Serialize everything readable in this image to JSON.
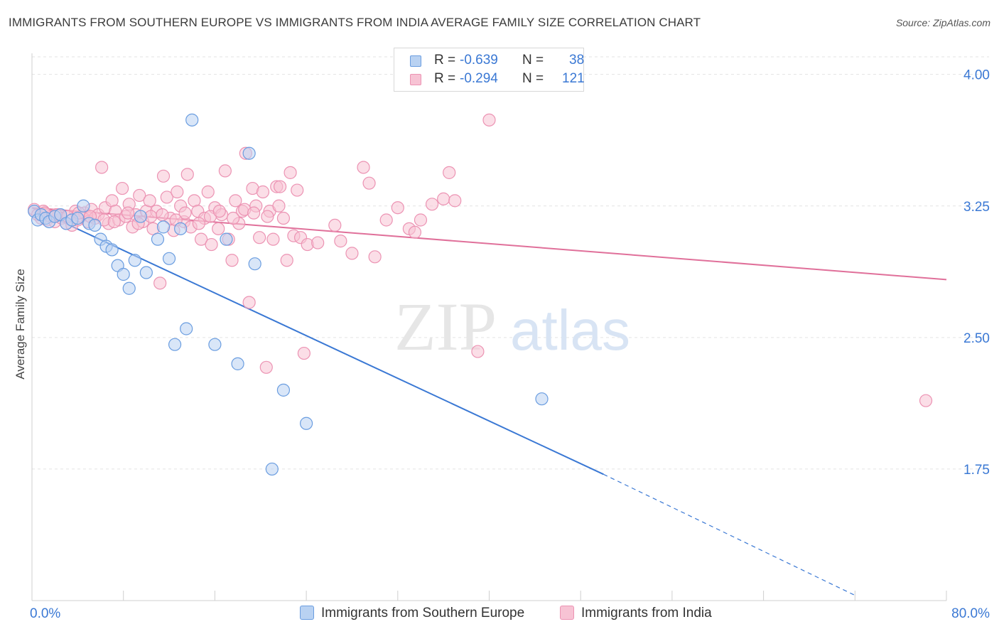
{
  "title": "IMMIGRANTS FROM SOUTHERN EUROPE VS IMMIGRANTS FROM INDIA AVERAGE FAMILY SIZE CORRELATION CHART",
  "source": "Source: ZipAtlas.com",
  "watermark": {
    "zip": "ZIP",
    "atlas": "atlas"
  },
  "colors": {
    "blue": "#3a78d4",
    "blue_fill": "#b9d2f2",
    "blue_stroke": "#6a9de0",
    "pink": "#e0709a",
    "pink_fill": "#f7c3d4",
    "pink_stroke": "#ec93b3",
    "grid": "#e3e3e3",
    "tick_label": "#3a78d4"
  },
  "legend_top": {
    "rows": [
      {
        "r_label": "R =",
        "r_value": "-0.639",
        "n_label": "N =",
        "n_value": "38",
        "color": "blue"
      },
      {
        "r_label": "R =",
        "r_value": "-0.294",
        "n_label": "N =",
        "n_value": "121",
        "color": "pink"
      }
    ]
  },
  "chart_data": {
    "type": "scatter",
    "title": "IMMIGRANTS FROM SOUTHERN EUROPE VS IMMIGRANTS FROM INDIA AVERAGE FAMILY SIZE CORRELATION CHART",
    "xlabel": "",
    "ylabel": "Average Family Size",
    "xlim": [
      0,
      80
    ],
    "ylim": [
      1.0,
      4.1
    ],
    "x_tick_labels": [
      "0.0%",
      "80.0%"
    ],
    "y_ticks": [
      1.75,
      2.5,
      3.25,
      4.0
    ],
    "y_tick_labels": [
      "1.75",
      "2.50",
      "3.25",
      "4.00"
    ],
    "grid": true,
    "legend_position": "top-center",
    "series": [
      {
        "name": "Immigrants from Southern Europe",
        "color": "blue",
        "R": -0.639,
        "N": 38,
        "trend": {
          "x0": 0,
          "y0": 3.24,
          "x1": 50,
          "y1": 1.72,
          "dashed_to_x": 72,
          "dashed_to_y": 1.03
        },
        "points": [
          [
            0.2,
            3.22
          ],
          [
            0.5,
            3.17
          ],
          [
            0.8,
            3.2
          ],
          [
            1.2,
            3.18
          ],
          [
            1.5,
            3.16
          ],
          [
            2.0,
            3.19
          ],
          [
            2.5,
            3.2
          ],
          [
            3.0,
            3.15
          ],
          [
            3.5,
            3.17
          ],
          [
            4.0,
            3.18
          ],
          [
            4.5,
            3.25
          ],
          [
            5.0,
            3.15
          ],
          [
            5.5,
            3.14
          ],
          [
            6.0,
            3.06
          ],
          [
            6.5,
            3.02
          ],
          [
            7.0,
            3.0
          ],
          [
            7.5,
            2.91
          ],
          [
            8.0,
            2.86
          ],
          [
            8.5,
            2.78
          ],
          [
            9.0,
            2.94
          ],
          [
            9.5,
            3.19
          ],
          [
            10.0,
            2.87
          ],
          [
            11.0,
            3.06
          ],
          [
            12.0,
            2.95
          ],
          [
            13.0,
            3.12
          ],
          [
            11.5,
            3.13
          ],
          [
            12.5,
            2.46
          ],
          [
            13.5,
            2.55
          ],
          [
            14.0,
            3.74
          ],
          [
            16.0,
            2.46
          ],
          [
            17.0,
            3.06
          ],
          [
            18.0,
            2.35
          ],
          [
            19.0,
            3.55
          ],
          [
            19.5,
            2.92
          ],
          [
            22.0,
            2.2
          ],
          [
            24.0,
            2.01
          ],
          [
            21.0,
            1.75
          ],
          [
            44.6,
            2.15
          ]
        ]
      },
      {
        "name": "Immigrants from India",
        "color": "pink",
        "R": -0.294,
        "N": 121,
        "trend": {
          "x0": 0,
          "y0": 3.24,
          "x1": 80,
          "y1": 2.83
        },
        "points": [
          [
            0.2,
            3.23
          ],
          [
            0.5,
            3.2
          ],
          [
            0.8,
            3.18
          ],
          [
            1.0,
            3.22
          ],
          [
            1.3,
            3.17
          ],
          [
            1.6,
            3.19
          ],
          [
            2.0,
            3.16
          ],
          [
            2.3,
            3.2
          ],
          [
            2.6,
            3.18
          ],
          [
            3.0,
            3.15
          ],
          [
            3.2,
            3.19
          ],
          [
            3.5,
            3.14
          ],
          [
            3.8,
            3.22
          ],
          [
            4.0,
            3.17
          ],
          [
            4.3,
            3.19
          ],
          [
            4.6,
            3.21
          ],
          [
            4.9,
            3.16
          ],
          [
            5.2,
            3.23
          ],
          [
            5.5,
            3.18
          ],
          [
            5.8,
            3.2
          ],
          [
            6.1,
            3.47
          ],
          [
            6.4,
            3.24
          ],
          [
            6.7,
            3.15
          ],
          [
            7.0,
            3.28
          ],
          [
            7.3,
            3.22
          ],
          [
            7.6,
            3.17
          ],
          [
            7.9,
            3.35
          ],
          [
            8.2,
            3.19
          ],
          [
            8.5,
            3.26
          ],
          [
            8.8,
            3.13
          ],
          [
            9.1,
            3.2
          ],
          [
            9.4,
            3.31
          ],
          [
            9.7,
            3.16
          ],
          [
            10.0,
            3.22
          ],
          [
            10.3,
            3.28
          ],
          [
            10.6,
            3.12
          ],
          [
            10.9,
            3.22
          ],
          [
            11.2,
            2.81
          ],
          [
            11.5,
            3.42
          ],
          [
            11.8,
            3.3
          ],
          [
            12.1,
            3.18
          ],
          [
            12.4,
            3.11
          ],
          [
            12.7,
            3.33
          ],
          [
            13.0,
            3.25
          ],
          [
            13.3,
            3.16
          ],
          [
            13.6,
            3.43
          ],
          [
            13.9,
            3.13
          ],
          [
            14.2,
            3.28
          ],
          [
            14.5,
            3.22
          ],
          [
            14.8,
            3.06
          ],
          [
            15.1,
            3.18
          ],
          [
            15.4,
            3.33
          ],
          [
            15.7,
            3.03
          ],
          [
            16.0,
            3.24
          ],
          [
            16.3,
            3.12
          ],
          [
            16.6,
            3.2
          ],
          [
            16.9,
            3.45
          ],
          [
            17.2,
            3.06
          ],
          [
            17.5,
            2.94
          ],
          [
            17.8,
            3.28
          ],
          [
            18.1,
            3.15
          ],
          [
            18.4,
            3.22
          ],
          [
            18.7,
            3.55
          ],
          [
            19.0,
            2.7
          ],
          [
            19.3,
            3.35
          ],
          [
            19.6,
            3.25
          ],
          [
            19.9,
            3.07
          ],
          [
            20.2,
            3.33
          ],
          [
            20.5,
            2.33
          ],
          [
            20.8,
            3.22
          ],
          [
            21.1,
            3.06
          ],
          [
            21.4,
            3.36
          ],
          [
            21.7,
            3.36
          ],
          [
            22.0,
            3.18
          ],
          [
            22.3,
            2.94
          ],
          [
            22.6,
            3.44
          ],
          [
            22.9,
            3.08
          ],
          [
            23.2,
            3.34
          ],
          [
            23.5,
            3.07
          ],
          [
            23.8,
            2.41
          ],
          [
            24.1,
            3.03
          ],
          [
            25.0,
            3.04
          ],
          [
            26.5,
            3.14
          ],
          [
            27.0,
            3.05
          ],
          [
            28.0,
            2.98
          ],
          [
            29.0,
            3.47
          ],
          [
            29.5,
            3.38
          ],
          [
            30.0,
            2.96
          ],
          [
            31.0,
            3.17
          ],
          [
            32.0,
            3.24
          ],
          [
            33.0,
            3.12
          ],
          [
            34.0,
            3.17
          ],
          [
            35.0,
            3.26
          ],
          [
            36.0,
            3.29
          ],
          [
            37.0,
            3.28
          ],
          [
            36.5,
            3.44
          ],
          [
            33.5,
            3.1
          ],
          [
            40.0,
            3.74
          ],
          [
            39.0,
            2.42
          ],
          [
            1.1,
            3.21
          ],
          [
            2.1,
            3.2
          ],
          [
            3.1,
            3.19
          ],
          [
            4.1,
            3.21
          ],
          [
            5.1,
            3.19
          ],
          [
            6.3,
            3.17
          ],
          [
            7.2,
            3.16
          ],
          [
            8.4,
            3.21
          ],
          [
            9.3,
            3.15
          ],
          [
            10.4,
            3.19
          ],
          [
            11.4,
            3.2
          ],
          [
            12.6,
            3.17
          ],
          [
            13.4,
            3.21
          ],
          [
            14.6,
            3.15
          ],
          [
            15.6,
            3.19
          ],
          [
            16.4,
            3.22
          ],
          [
            17.6,
            3.18
          ],
          [
            18.6,
            3.23
          ],
          [
            19.4,
            3.21
          ],
          [
            20.6,
            3.19
          ],
          [
            21.6,
            3.25
          ],
          [
            78.2,
            2.14
          ]
        ]
      }
    ]
  }
}
